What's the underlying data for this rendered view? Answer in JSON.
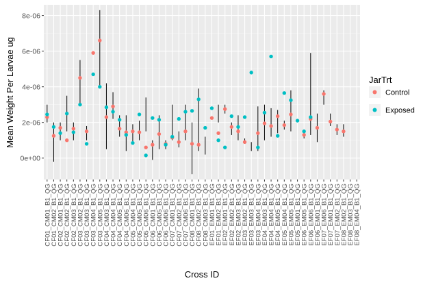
{
  "chart_data": {
    "type": "scatter",
    "xlabel": "Cross ID",
    "ylabel": "Mean Weight Per Larvae ug",
    "ylim": [
      -1.2e-06,
      8.6e-06
    ],
    "y_ticks": [
      {
        "value": 0,
        "label": "0e+00"
      },
      {
        "value": 2e-06,
        "label": "2e-06"
      },
      {
        "value": 4e-06,
        "label": "4e-06"
      },
      {
        "value": 6e-06,
        "label": "6e-06"
      },
      {
        "value": 8e-06,
        "label": "8e-06"
      }
    ],
    "grid": true,
    "legend": {
      "title": "JarTrt",
      "position": "right"
    },
    "categories": [
      "CF01_CM01_B1_QG",
      "CF01_CM02_B1_QG",
      "CF02_CM01_B1_QG",
      "CF02_CM02_B1_QG",
      "CF02_CM03_B1_QG",
      "CF03_CM02_B1_QG",
      "CF03_CM03_B1_QG",
      "CF03_CM04_B1_QG",
      "CF03_CM05_B1_QG",
      "CF04_CM03_B1_QG",
      "CF04_CM04_B1_QG",
      "CF04_CM05_B1_QG",
      "CF04_CM06_B1_QG",
      "CF05_CM04_B1_QG",
      "CF05_CM05_B1_QG",
      "CF05_CM06_B1_QG",
      "CF06_CM01_B1_QG",
      "CF06_CM05_B1_QG",
      "CF06_CM06_B1_QG",
      "CF07_CM01_B1_QG",
      "CF07_CM02_B1_QG",
      "CF07_CM06_B1_QG",
      "CF08_CM01_B1_QG",
      "CF08_CM02_B1_QG",
      "CF08_CM03_B1_QG",
      "EF01_EM01_B1_QG",
      "EF01_EM02_B1_QG",
      "EF02_EM01_B1_QG",
      "EF02_EM02_B1_QG",
      "EF02_EM03_B1_QG",
      "EF03_EM02_B1_QG",
      "EF03_EM03_B1_QG",
      "EF03_EM04_B1_QG",
      "EF04_EM03_B1_QG",
      "EF04_EM04_B1_QG",
      "EF04_EM05_B1_QG",
      "EF05_EM04_B1_QG",
      "EF05_EM05_B1_QG",
      "EF05_EM01_B1_QG",
      "EF06_EM05_B1_QG",
      "EF06_EM06_B1_QG",
      "EF06_EM01_B1_QG",
      "EF07_EM06_B1_QG",
      "EF07_EM01_B1_QG",
      "EF07_EM02_B1_QG",
      "EF08_EM02_B1_QG",
      "EF08_EM03_B1_QG",
      "EF08_EM04_B1_QG"
    ],
    "series": [
      {
        "name": "Control",
        "color": "#F8766D",
        "values": [
          2.3e-06,
          1.25e-06,
          1.7e-06,
          1e-06,
          1.65e-06,
          4.5e-06,
          1.5e-06,
          5.9e-06,
          6.6e-06,
          2.3e-06,
          2.9e-06,
          1.65e-06,
          1.45e-06,
          1.5e-06,
          1.45e-06,
          6e-07,
          7.5e-07,
          1.35e-06,
          8e-07,
          1.15e-06,
          9e-07,
          1.5e-06,
          8e-07,
          7.5e-07,
          null,
          2.25e-06,
          1.4e-06,
          2.75e-06,
          1.75e-06,
          1.5e-06,
          9e-07,
          null,
          1.4e-06,
          1.95e-06,
          1.8e-06,
          2.35e-06,
          1.85e-06,
          2.45e-06,
          null,
          1.3e-06,
          2.2e-06,
          1.7e-06,
          3.6e-06,
          2.05e-06,
          1.6e-06,
          1.5e-06,
          null,
          null
        ]
      },
      {
        "name": "Exposed",
        "color": "#00BFC4",
        "values": [
          2.45e-06,
          1.75e-06,
          1.4e-06,
          2.5e-06,
          1.45e-06,
          3e-06,
          8e-07,
          4.7e-06,
          4e-06,
          2.85e-06,
          2.6e-06,
          2.15e-06,
          1.3e-06,
          8.5e-07,
          2.45e-06,
          1.5e-07,
          2.25e-06,
          2.15e-06,
          7.5e-07,
          1.2e-06,
          2.2e-06,
          2.6e-06,
          2.65e-06,
          3.3e-06,
          1.7e-06,
          2.8e-06,
          1e-06,
          6e-07,
          2.35e-06,
          1.75e-06,
          2.3e-06,
          4.8e-06,
          6e-07,
          2.55e-06,
          5.7e-06,
          1.25e-06,
          3.65e-06,
          3.25e-06,
          2.1e-06,
          1.5e-06,
          2.3e-06,
          null,
          null,
          null,
          null,
          null,
          null,
          null
        ]
      }
    ],
    "error_bars": [
      {
        "x": "CF01_CM01_B1_QG",
        "low": 2e-06,
        "high": 3e-06
      },
      {
        "x": "CF01_CM02_B1_QG",
        "low": -2e-07,
        "high": 2e-06
      },
      {
        "x": "CF02_CM01_B1_QG",
        "low": 1e-06,
        "high": 2e-06
      },
      {
        "x": "CF02_CM02_B1_QG",
        "low": 1.5e-06,
        "high": 3.5e-06
      },
      {
        "x": "CF02_CM03_B1_QG",
        "low": 1e-06,
        "high": 2e-06
      },
      {
        "x": "CF03_CM02_B1_QG",
        "low": 3e-06,
        "high": 5.5e-06
      },
      {
        "x": "CF03_CM03_B1_QG",
        "low": 1e-06,
        "high": 1.8e-06
      },
      {
        "x": "CF03_CM05_B1_QG",
        "low": 4e-06,
        "high": 8.3e-06
      },
      {
        "x": "CF04_CM03_B1_QG",
        "low": 5e-07,
        "high": 4.2e-06
      },
      {
        "x": "CF04_CM04_B1_QG",
        "low": 2.2e-06,
        "high": 3.7e-06
      },
      {
        "x": "CF04_CM05_B1_QG",
        "low": 1.2e-06,
        "high": 2.4e-06
      },
      {
        "x": "CF04_CM06_B1_QG",
        "low": 4e-07,
        "high": 2.4e-06
      },
      {
        "x": "CF05_CM04_B1_QG",
        "low": 8e-07,
        "high": 1.9e-06
      },
      {
        "x": "CF05_CM05_B1_QG",
        "low": 1e-06,
        "high": 2.1e-06
      },
      {
        "x": "CF05_CM06_B1_QG",
        "low": 1.5e-06,
        "high": 3.4e-06
      },
      {
        "x": "CF06_CM01_B1_QG",
        "low": -1e-07,
        "high": 1e-06
      },
      {
        "x": "CF06_CM05_B1_QG",
        "low": 5e-07,
        "high": 2.4e-06
      },
      {
        "x": "CF06_CM06_B1_QG",
        "low": 5e-07,
        "high": 1e-06
      },
      {
        "x": "CF07_CM01_B1_QG",
        "low": 1e-06,
        "high": 3e-06
      },
      {
        "x": "CF07_CM02_B1_QG",
        "low": 6e-07,
        "high": 1.5e-06
      },
      {
        "x": "CF07_CM06_B1_QG",
        "low": 1e-06,
        "high": 3e-06
      },
      {
        "x": "CF08_CM01_B1_QG",
        "low": -9e-07,
        "high": 2e-06
      },
      {
        "x": "CF08_CM02_B1_QG",
        "low": 4e-07,
        "high": 3.9e-06
      },
      {
        "x": "CF08_CM03_B1_QG",
        "low": 2e-07,
        "high": 1.2e-06
      },
      {
        "x": "EF01_EM02_B1_QG",
        "low": 2e-06,
        "high": 3e-06
      },
      {
        "x": "EF02_EM01_B1_QG",
        "low": 2.5e-06,
        "high": 3e-06
      },
      {
        "x": "EF02_EM02_B1_QG",
        "low": 1.3e-06,
        "high": 2e-06
      },
      {
        "x": "EF02_EM03_B1_QG",
        "low": 1e-06,
        "high": 2.4e-06
      },
      {
        "x": "EF03_EM02_B1_QG",
        "low": 8e-07,
        "high": 1.1e-06
      },
      {
        "x": "EF03_EM03_B1_QG",
        "low": 4e-07,
        "high": 9e-07
      },
      {
        "x": "EF03_EM04_B1_QG",
        "low": 4e-07,
        "high": 2.9e-06
      },
      {
        "x": "EF04_EM03_B1_QG",
        "low": 1e-06,
        "high": 3e-06
      },
      {
        "x": "EF04_EM04_B1_QG",
        "low": 1.2e-06,
        "high": 2.8e-06
      },
      {
        "x": "EF04_EM05_B1_QG",
        "low": 1.4e-06,
        "high": 2.7e-06
      },
      {
        "x": "EF05_EM04_B1_QG",
        "low": 1.6e-06,
        "high": 2.1e-06
      },
      {
        "x": "EF05_EM05_B1_QG",
        "low": 1.5e-06,
        "high": 3.8e-06
      },
      {
        "x": "EF06_EM05_B1_QG",
        "low": 1.1e-06,
        "high": 1.6e-06
      },
      {
        "x": "EF06_EM06_B1_QG",
        "low": 1.3e-06,
        "high": 5.9e-06
      },
      {
        "x": "EF06_EM01_B1_QG",
        "low": 9e-07,
        "high": 2.5e-06
      },
      {
        "x": "EF07_EM06_B1_QG",
        "low": 3e-06,
        "high": 3.8e-06
      },
      {
        "x": "EF07_EM01_B1_QG",
        "low": 1.8e-06,
        "high": 2.5e-06
      },
      {
        "x": "EF07_EM02_B1_QG",
        "low": 1.3e-06,
        "high": 1.9e-06
      },
      {
        "x": "EF08_EM02_B1_QG",
        "low": 1.2e-06,
        "high": 1.9e-06
      }
    ]
  }
}
